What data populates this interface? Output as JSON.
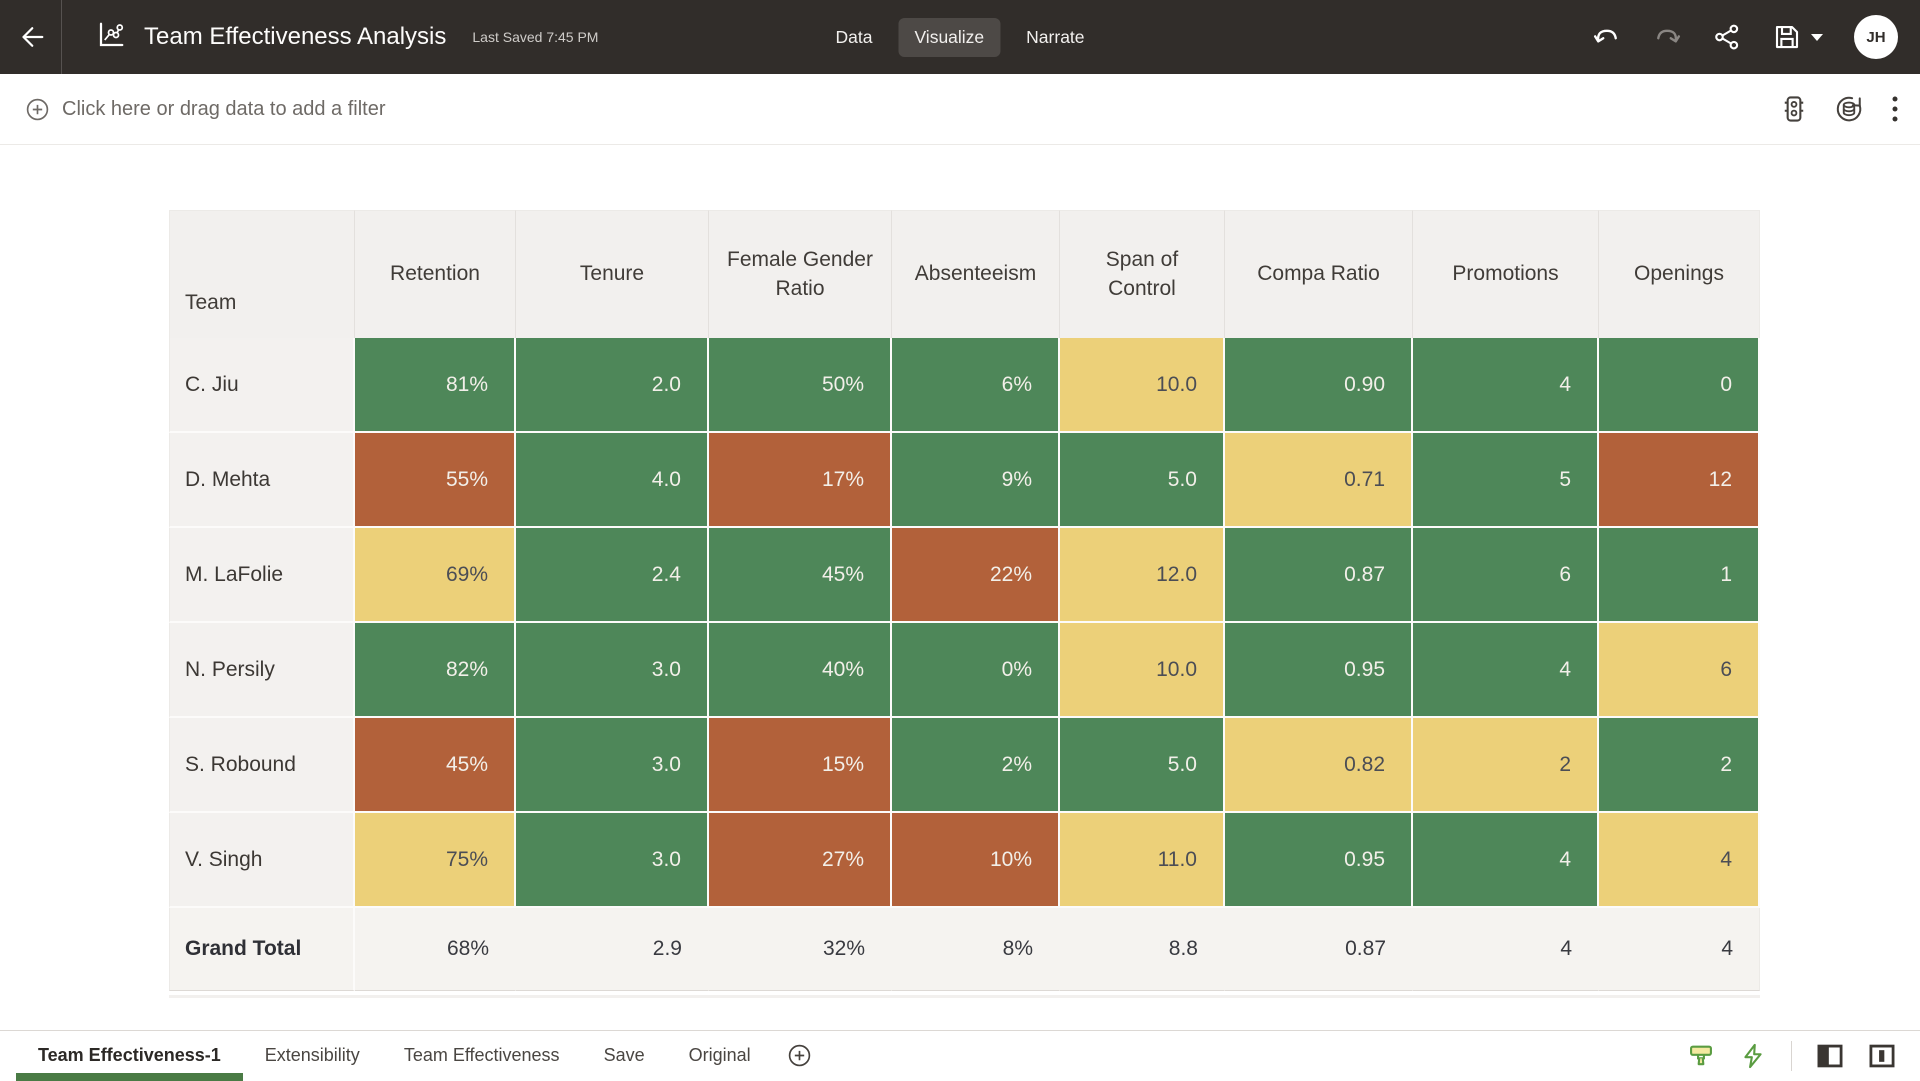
{
  "header": {
    "title": "Team Effectiveness Analysis",
    "last_saved": "Last Saved 7:45 PM",
    "tabs": [
      {
        "label": "Data",
        "active": false
      },
      {
        "label": "Visualize",
        "active": true
      },
      {
        "label": "Narrate",
        "active": false
      }
    ],
    "avatar_initials": "JH",
    "icons": [
      "back-icon",
      "visualization-icon",
      "undo-icon",
      "redo-icon",
      "share-icon",
      "save-icon",
      "caret-down-icon"
    ]
  },
  "filter_bar": {
    "prompt": "Click here or drag data to add a filter",
    "icons": [
      "add-filter-icon",
      "limit-values-icon",
      "data-refresh-icon",
      "kebab-menu-icon"
    ]
  },
  "table": {
    "columns": [
      "Team",
      "Retention",
      "Tenure",
      "Female Gender Ratio",
      "Absenteeism",
      "Span of Control",
      "Compa Ratio",
      "Promotions",
      "Openings"
    ],
    "rows": [
      {
        "team": "C. Jiu",
        "cells": [
          {
            "v": "81%",
            "c": "green"
          },
          {
            "v": "2.0",
            "c": "green"
          },
          {
            "v": "50%",
            "c": "green"
          },
          {
            "v": "6%",
            "c": "green"
          },
          {
            "v": "10.0",
            "c": "yellow"
          },
          {
            "v": "0.90",
            "c": "green"
          },
          {
            "v": "4",
            "c": "green"
          },
          {
            "v": "0",
            "c": "green"
          }
        ]
      },
      {
        "team": "D. Mehta",
        "cells": [
          {
            "v": "55%",
            "c": "orange"
          },
          {
            "v": "4.0",
            "c": "green"
          },
          {
            "v": "17%",
            "c": "orange"
          },
          {
            "v": "9%",
            "c": "green"
          },
          {
            "v": "5.0",
            "c": "green"
          },
          {
            "v": "0.71",
            "c": "yellow"
          },
          {
            "v": "5",
            "c": "green"
          },
          {
            "v": "12",
            "c": "orange"
          }
        ]
      },
      {
        "team": "M. LaFolie",
        "cells": [
          {
            "v": "69%",
            "c": "yellow"
          },
          {
            "v": "2.4",
            "c": "green"
          },
          {
            "v": "45%",
            "c": "green"
          },
          {
            "v": "22%",
            "c": "orange"
          },
          {
            "v": "12.0",
            "c": "yellow"
          },
          {
            "v": "0.87",
            "c": "green"
          },
          {
            "v": "6",
            "c": "green"
          },
          {
            "v": "1",
            "c": "green"
          }
        ]
      },
      {
        "team": "N. Persily",
        "cells": [
          {
            "v": "82%",
            "c": "green"
          },
          {
            "v": "3.0",
            "c": "green"
          },
          {
            "v": "40%",
            "c": "green"
          },
          {
            "v": "0%",
            "c": "green"
          },
          {
            "v": "10.0",
            "c": "yellow"
          },
          {
            "v": "0.95",
            "c": "green"
          },
          {
            "v": "4",
            "c": "green"
          },
          {
            "v": "6",
            "c": "yellow"
          }
        ]
      },
      {
        "team": "S. Robound",
        "cells": [
          {
            "v": "45%",
            "c": "orange"
          },
          {
            "v": "3.0",
            "c": "green"
          },
          {
            "v": "15%",
            "c": "orange"
          },
          {
            "v": "2%",
            "c": "green"
          },
          {
            "v": "5.0",
            "c": "green"
          },
          {
            "v": "0.82",
            "c": "yellow"
          },
          {
            "v": "2",
            "c": "yellow"
          },
          {
            "v": "2",
            "c": "green"
          }
        ]
      },
      {
        "team": "V. Singh",
        "cells": [
          {
            "v": "75%",
            "c": "yellow"
          },
          {
            "v": "3.0",
            "c": "green"
          },
          {
            "v": "27%",
            "c": "orange"
          },
          {
            "v": "10%",
            "c": "orange"
          },
          {
            "v": "11.0",
            "c": "yellow"
          },
          {
            "v": "0.95",
            "c": "green"
          },
          {
            "v": "4",
            "c": "green"
          },
          {
            "v": "4",
            "c": "yellow"
          }
        ]
      }
    ],
    "grand_total": {
      "team": "Grand Total",
      "cells": [
        "68%",
        "2.9",
        "32%",
        "8%",
        "8.8",
        "0.87",
        "4",
        "4"
      ]
    }
  },
  "bottom_bar": {
    "tabs": [
      {
        "label": "Team Effectiveness-1",
        "active": true
      },
      {
        "label": "Extensibility",
        "active": false
      },
      {
        "label": "Team Effectiveness",
        "active": false
      },
      {
        "label": "Save",
        "active": false
      },
      {
        "label": "Original",
        "active": false
      }
    ],
    "icons": [
      "add-canvas-icon",
      "canvas-style-icon",
      "auto-apply-icon",
      "toggle-left-panel-icon",
      "toggle-right-panel-icon"
    ]
  },
  "colors": {
    "appbar_bg": "#312d2a",
    "good_green": "#4e8759",
    "warn_yellow": "#ecd079",
    "bad_orange": "#b2613a",
    "active_tab_underline": "#4a7b45",
    "accent_icon_green": "#5a9c41"
  }
}
